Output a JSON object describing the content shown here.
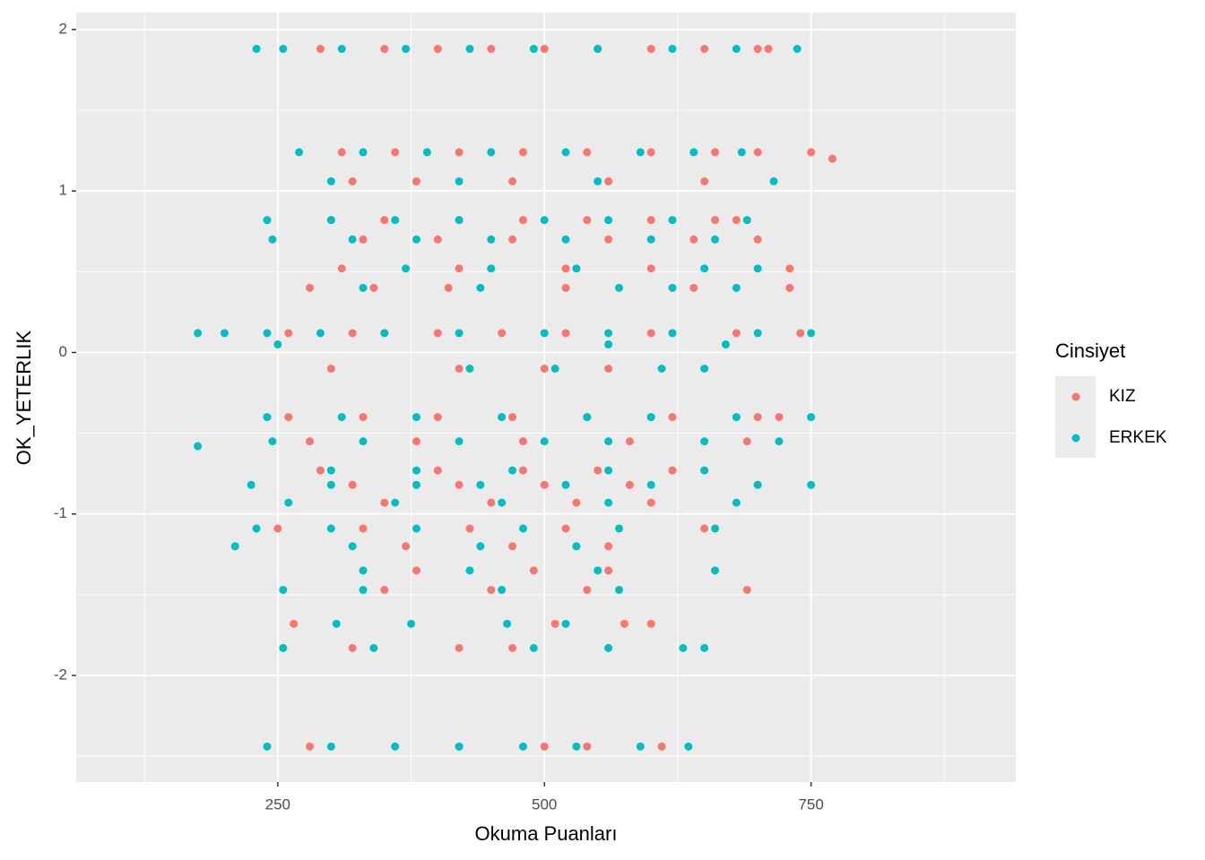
{
  "chart_data": {
    "type": "scatter",
    "x_label": "Okuma Puanları",
    "y_label": "OK_YETERLIK",
    "legend_title": "Cinsiyet",
    "legend": "right",
    "xlim": [
      61,
      942
    ],
    "ylim": [
      -2.66,
      2.105
    ],
    "xticks": [
      250,
      500,
      750
    ],
    "yticks": [
      -2,
      -1,
      0,
      1,
      2
    ],
    "xminor": [
      125,
      375,
      625,
      875
    ],
    "yminor": [
      -2.5,
      -1.5,
      -0.5,
      0.5,
      1.5
    ],
    "grid": true,
    "series": [
      {
        "name": "KIZ",
        "color": "#F8766D",
        "x": [
          290,
          350,
          400,
          450,
          500,
          550,
          600,
          650,
          700,
          710,
          310,
          360,
          420,
          480,
          540,
          600,
          660,
          700,
          750,
          770,
          320,
          380,
          470,
          560,
          650,
          300,
          350,
          420,
          480,
          540,
          600,
          660,
          680,
          330,
          400,
          470,
          560,
          640,
          700,
          310,
          420,
          520,
          600,
          730,
          280,
          340,
          410,
          520,
          640,
          730,
          260,
          320,
          400,
          460,
          520,
          600,
          680,
          740,
          300,
          420,
          500,
          560,
          260,
          330,
          400,
          470,
          540,
          620,
          700,
          720,
          280,
          380,
          480,
          580,
          690,
          290,
          400,
          480,
          550,
          620,
          320,
          420,
          500,
          580,
          700,
          350,
          450,
          530,
          600,
          250,
          330,
          430,
          520,
          650,
          370,
          470,
          560,
          380,
          490,
          560,
          350,
          450,
          540,
          690,
          265,
          510,
          575,
          600,
          320,
          420,
          470,
          560,
          280,
          420,
          500,
          540,
          610
        ],
        "y": [
          1.88,
          1.88,
          1.88,
          1.88,
          1.88,
          1.88,
          1.88,
          1.88,
          1.88,
          1.88,
          1.24,
          1.24,
          1.24,
          1.24,
          1.24,
          1.24,
          1.24,
          1.24,
          1.24,
          1.2,
          1.06,
          1.06,
          1.06,
          1.06,
          1.06,
          0.82,
          0.82,
          0.82,
          0.82,
          0.82,
          0.82,
          0.82,
          0.82,
          0.7,
          0.7,
          0.7,
          0.7,
          0.7,
          0.7,
          0.52,
          0.52,
          0.52,
          0.52,
          0.52,
          0.4,
          0.4,
          0.4,
          0.4,
          0.4,
          0.4,
          0.12,
          0.12,
          0.12,
          0.12,
          0.12,
          0.12,
          0.12,
          0.12,
          -0.1,
          -0.1,
          -0.1,
          -0.1,
          -0.4,
          -0.4,
          -0.4,
          -0.4,
          -0.4,
          -0.4,
          -0.4,
          -0.4,
          -0.55,
          -0.55,
          -0.55,
          -0.55,
          -0.55,
          -0.73,
          -0.73,
          -0.73,
          -0.73,
          -0.73,
          -0.82,
          -0.82,
          -0.82,
          -0.82,
          -0.82,
          -0.93,
          -0.93,
          -0.93,
          -0.93,
          -1.09,
          -1.09,
          -1.09,
          -1.09,
          -1.09,
          -1.2,
          -1.2,
          -1.2,
          -1.35,
          -1.35,
          -1.35,
          -1.47,
          -1.47,
          -1.47,
          -1.47,
          -1.68,
          -1.68,
          -1.68,
          -1.68,
          -1.83,
          -1.83,
          -1.83,
          -1.83,
          -2.44,
          -2.44,
          -2.44,
          -2.44,
          -2.44
        ]
      },
      {
        "name": "ERKEK",
        "color": "#00BFC4",
        "x": [
          230,
          255,
          310,
          370,
          430,
          490,
          550,
          620,
          680,
          737,
          270,
          330,
          390,
          450,
          520,
          590,
          640,
          685,
          300,
          420,
          550,
          715,
          240,
          300,
          360,
          420,
          500,
          560,
          620,
          690,
          245,
          320,
          380,
          450,
          520,
          600,
          660,
          370,
          450,
          530,
          650,
          700,
          330,
          440,
          570,
          620,
          680,
          175,
          200,
          240,
          290,
          350,
          420,
          500,
          560,
          620,
          700,
          750,
          250,
          560,
          670,
          430,
          510,
          610,
          650,
          240,
          310,
          380,
          460,
          540,
          600,
          680,
          750,
          245,
          330,
          420,
          500,
          560,
          650,
          720,
          175,
          300,
          380,
          470,
          560,
          650,
          225,
          300,
          380,
          440,
          520,
          600,
          700,
          750,
          260,
          360,
          460,
          560,
          680,
          230,
          300,
          380,
          480,
          570,
          660,
          210,
          320,
          440,
          530,
          330,
          430,
          550,
          660,
          255,
          330,
          460,
          570,
          305,
          375,
          465,
          520,
          255,
          340,
          490,
          560,
          630,
          650,
          240,
          300,
          360,
          420,
          480,
          530,
          590,
          635
        ],
        "y": [
          1.88,
          1.88,
          1.88,
          1.88,
          1.88,
          1.88,
          1.88,
          1.88,
          1.88,
          1.88,
          1.24,
          1.24,
          1.24,
          1.24,
          1.24,
          1.24,
          1.24,
          1.24,
          1.06,
          1.06,
          1.06,
          1.06,
          0.82,
          0.82,
          0.82,
          0.82,
          0.82,
          0.82,
          0.82,
          0.82,
          0.7,
          0.7,
          0.7,
          0.7,
          0.7,
          0.7,
          0.7,
          0.52,
          0.52,
          0.52,
          0.52,
          0.52,
          0.4,
          0.4,
          0.4,
          0.4,
          0.4,
          0.12,
          0.12,
          0.12,
          0.12,
          0.12,
          0.12,
          0.12,
          0.12,
          0.12,
          0.12,
          0.12,
          0.05,
          0.05,
          0.05,
          -0.1,
          -0.1,
          -0.1,
          -0.1,
          -0.4,
          -0.4,
          -0.4,
          -0.4,
          -0.4,
          -0.4,
          -0.4,
          -0.4,
          -0.55,
          -0.55,
          -0.55,
          -0.55,
          -0.55,
          -0.55,
          -0.55,
          -0.58,
          -0.73,
          -0.73,
          -0.73,
          -0.73,
          -0.73,
          -0.82,
          -0.82,
          -0.82,
          -0.82,
          -0.82,
          -0.82,
          -0.82,
          -0.82,
          -0.93,
          -0.93,
          -0.93,
          -0.93,
          -0.93,
          -1.09,
          -1.09,
          -1.09,
          -1.09,
          -1.09,
          -1.09,
          -1.2,
          -1.2,
          -1.2,
          -1.2,
          -1.35,
          -1.35,
          -1.35,
          -1.35,
          -1.47,
          -1.47,
          -1.47,
          -1.47,
          -1.68,
          -1.68,
          -1.68,
          -1.68,
          -1.83,
          -1.83,
          -1.83,
          -1.83,
          -1.83,
          -1.83,
          -2.44,
          -2.44,
          -2.44,
          -2.44,
          -2.44,
          -2.44,
          -2.44,
          -2.44
        ]
      }
    ]
  }
}
